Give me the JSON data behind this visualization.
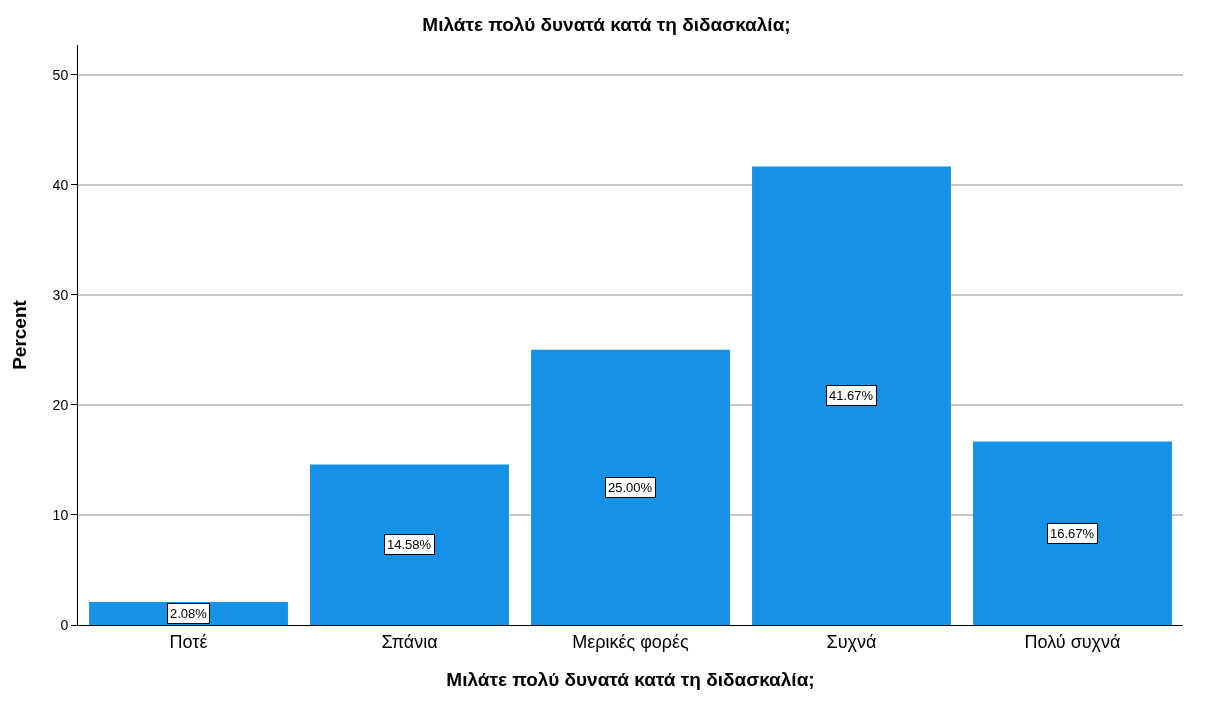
{
  "chart_data": {
    "type": "bar",
    "title": "Μιλάτε πολύ δυνατά κατά τη διδασκαλία;",
    "xlabel": "Μιλάτε πολύ δυνατά κατά τη διδασκαλία;",
    "ylabel": "Percent",
    "categories": [
      "Ποτέ",
      "Σπάνια",
      "Μερικές φορές",
      "Συχνά",
      "Πολύ συχνά"
    ],
    "values": [
      2.08,
      14.58,
      25.0,
      41.67,
      16.67
    ],
    "value_labels": [
      "2.08%",
      "14.58%",
      "25.00%",
      "41.67%",
      "16.67%"
    ],
    "color": "#1591e6",
    "ylim": [
      0,
      52.7
    ],
    "yticks": [
      0,
      10,
      20,
      30,
      40,
      50
    ],
    "grid": "y"
  }
}
